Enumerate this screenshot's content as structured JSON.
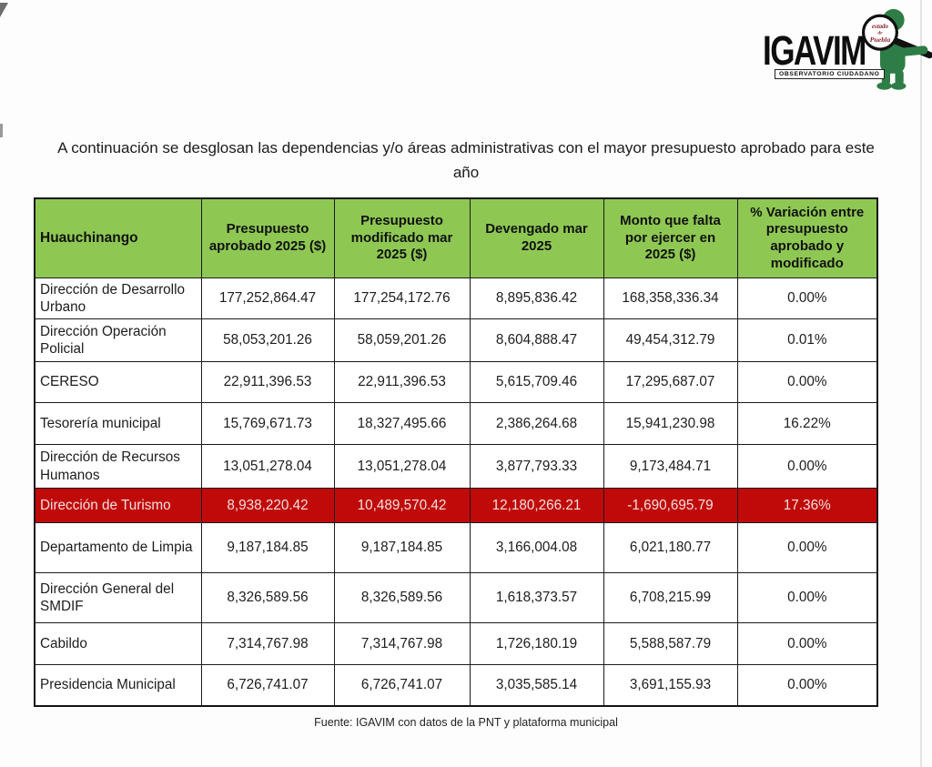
{
  "logo": {
    "brand": "IGAVIM",
    "subtitle": "OBSERVATORIO CIUDADANO",
    "lens_lines": [
      "estado",
      "de",
      "Puebla"
    ]
  },
  "title": "A continuación se desglosan las dependencias y/o áreas administrativas con el mayor presupuesto aprobado para este año",
  "colors": {
    "header_green": "#8ec853",
    "highlight_red": "#c00a0a",
    "highlight_text": "#f2dfdf",
    "mascot_green": "#2e7d46",
    "lens_text": "#8a2430"
  },
  "table": {
    "headers": [
      "Huauchinango",
      "Presupuesto aprobado 2025 ($)",
      "Presupuesto modificado mar 2025 ($)",
      "Devengado mar 2025",
      "Monto que falta por ejercer en 2025 ($)",
      "% Variación entre presupuesto aprobado y modificado"
    ],
    "rows": [
      {
        "name": "Dirección de Desarrollo Urbano",
        "values": [
          "177,252,864.47",
          "177,254,172.76",
          "8,895,836.42",
          "168,358,336.34",
          "0.00%"
        ],
        "highlight": false
      },
      {
        "name": "Dirección Operación Policial",
        "values": [
          "58,053,201.26",
          "58,059,201.26",
          "8,604,888.47",
          "49,454,312.79",
          "0.01%"
        ],
        "highlight": false
      },
      {
        "name": "CERESO",
        "values": [
          "22,911,396.53",
          "22,911,396.53",
          "5,615,709.46",
          "17,295,687.07",
          "0.00%"
        ],
        "highlight": false
      },
      {
        "name": "Tesorería municipal",
        "values": [
          "15,769,671.73",
          "18,327,495.66",
          "2,386,264.68",
          "15,941,230.98",
          "16.22%"
        ],
        "highlight": false
      },
      {
        "name": "Dirección de Recursos Humanos",
        "values": [
          "13,051,278.04",
          "13,051,278.04",
          "3,877,793.33",
          "9,173,484.71",
          "0.00%"
        ],
        "highlight": false
      },
      {
        "name": "Dirección de Turismo",
        "values": [
          "8,938,220.42",
          "10,489,570.42",
          "12,180,266.21",
          "-1,690,695.79",
          "17.36%"
        ],
        "highlight": true
      },
      {
        "name": "Departamento de Limpia",
        "values": [
          "9,187,184.85",
          "9,187,184.85",
          "3,166,004.08",
          "6,021,180.77",
          "0.00%"
        ],
        "highlight": false
      },
      {
        "name": "Dirección General del SMDIF",
        "values": [
          "8,326,589.56",
          "8,326,589.56",
          "1,618,373.57",
          "6,708,215.99",
          "0.00%"
        ],
        "highlight": false
      },
      {
        "name": "Cabildo",
        "values": [
          "7,314,767.98",
          "7,314,767.98",
          "1,726,180.19",
          "5,588,587.79",
          "0.00%"
        ],
        "highlight": false
      },
      {
        "name": "Presidencia Municipal",
        "values": [
          "6,726,741.07",
          "6,726,741.07",
          "3,035,585.14",
          "3,691,155.93",
          "0.00%"
        ],
        "highlight": false
      }
    ]
  },
  "footer": "Fuente: IGAVIM con datos de la PNT y plataforma municipal"
}
